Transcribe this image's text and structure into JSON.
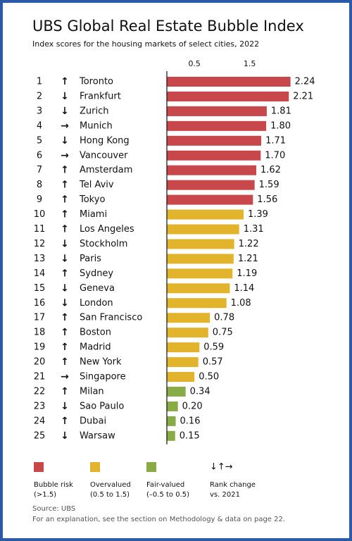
{
  "chart_data": {
    "type": "bar",
    "title": "UBS Global Real Estate Bubble Index",
    "subtitle": "Index scores for the housing markets of select cities, 2022",
    "ranks": [
      "1",
      "2",
      "3",
      "4",
      "5",
      "6",
      "7",
      "8",
      "9",
      "10",
      "11",
      "12",
      "13",
      "14",
      "15",
      "16",
      "17",
      "18",
      "19",
      "20",
      "21",
      "22",
      "23",
      "24",
      "25"
    ],
    "rank_change": [
      "↑",
      "↓",
      "↓",
      "→",
      "↓",
      "→",
      "↑",
      "↑",
      "↑",
      "↑",
      "↑",
      "↓",
      "↓",
      "↑",
      "↓",
      "↓",
      "↑",
      "↑",
      "↑",
      "↑",
      "→",
      "↑",
      "↓",
      "↑",
      "↓"
    ],
    "categories": [
      "Toronto",
      "Frankfurt",
      "Zurich",
      "Munich",
      "Hong Kong",
      "Vancouver",
      "Amsterdam",
      "Tel Aviv",
      "Tokyo",
      "Miami",
      "Los Angeles",
      "Stockholm",
      "Paris",
      "Sydney",
      "Geneva",
      "London",
      "San Francisco",
      "Boston",
      "Madrid",
      "New York",
      "Singapore",
      "Milan",
      "Sao Paulo",
      "Dubai",
      "Warsaw"
    ],
    "values": [
      2.24,
      2.21,
      1.81,
      1.8,
      1.71,
      1.7,
      1.62,
      1.59,
      1.56,
      1.39,
      1.31,
      1.22,
      1.21,
      1.19,
      1.14,
      1.08,
      0.78,
      0.75,
      0.59,
      0.57,
      0.5,
      0.34,
      0.2,
      0.16,
      0.15
    ],
    "value_labels": [
      "2.24",
      "2.21",
      "1.81",
      "1.80",
      "1.71",
      "1.70",
      "1.62",
      "1.59",
      "1.56",
      "1.39",
      "1.31",
      "1.22",
      "1.21",
      "1.19",
      "1.14",
      "1.08",
      "0.78",
      "0.75",
      "0.59",
      "0.57",
      "0.50",
      "0.34",
      "0.20",
      "0.16",
      "0.15"
    ],
    "colors": [
      "#c8474b",
      "#c8474b",
      "#c8474b",
      "#c8474b",
      "#c8474b",
      "#c8474b",
      "#c8474b",
      "#c8474b",
      "#c8474b",
      "#e2b42b",
      "#e2b42b",
      "#e2b42b",
      "#e2b42b",
      "#e2b42b",
      "#e2b42b",
      "#e2b42b",
      "#e2b42b",
      "#e2b42b",
      "#e2b42b",
      "#e2b42b",
      "#e2b42b",
      "#89ab46",
      "#89ab46",
      "#89ab46",
      "#89ab46"
    ],
    "xlim": [
      0,
      2.5
    ],
    "xticks": [
      0.5,
      1.5
    ],
    "legend": [
      {
        "name": "Bubble risk",
        "range": "(>1.5)",
        "color": "#c8474b"
      },
      {
        "name": "Overvalued",
        "range": "(0.5 to 1.5)",
        "color": "#e2b42b"
      },
      {
        "name": "Fair-valued",
        "range": "(–0.5 to 0.5)",
        "color": "#89ab46"
      }
    ],
    "rank_legend": {
      "symbols": "↓↑→",
      "name": "Rank change",
      "range": "vs. 2021"
    },
    "source": "Source: UBS",
    "note": "For an explanation, see the section on Methodology & data on page 22."
  }
}
